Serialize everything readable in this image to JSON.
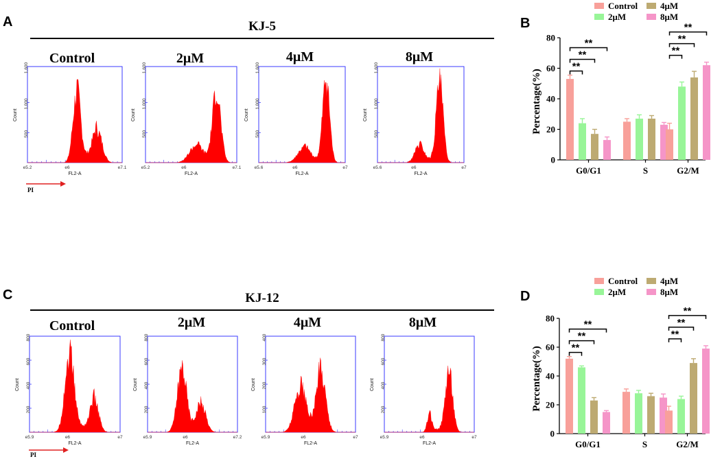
{
  "figure": {
    "panels": [
      "A",
      "B",
      "C",
      "D"
    ],
    "flow_titles": [
      "KJ-5",
      "KJ-12"
    ],
    "conditions": [
      "Control",
      "2μM",
      "4μM",
      "8μM"
    ],
    "flow_xlabel": "FL2-A",
    "flow_ylabel": "Count",
    "pi_label": "PI",
    "colors": {
      "histogram": "#ff0000",
      "frame": "#3a3aff",
      "Control": "#f8a09a",
      "2μM": "#98f598",
      "4μM": "#bdaa72",
      "8μM": "#f595c8",
      "arrow": "#e02020"
    }
  },
  "chart_data": [
    {
      "type": "histogram",
      "panel": "A",
      "title": "KJ-5",
      "xlabel": "FL2-A",
      "ylabel": "Count",
      "plots": [
        {
          "condition": "Control",
          "yticks": [
            "500",
            "1,000",
            "1,600"
          ],
          "ymax": 1600,
          "xticks": [
            "e5.2",
            "e6",
            "e7.1"
          ],
          "peaks": [
            {
              "pos": 0.52,
              "height": 1150,
              "width": 0.04
            },
            {
              "pos": 0.74,
              "height": 520,
              "width": 0.05
            }
          ]
        },
        {
          "condition": "2μM",
          "yticks": [
            "500",
            "1,000",
            "1,600"
          ],
          "ymax": 1600,
          "xticks": [
            "e5.2",
            "e6",
            "e7.1"
          ],
          "peaks": [
            {
              "pos": 0.55,
              "height": 280,
              "width": 0.07
            },
            {
              "pos": 0.78,
              "height": 1170,
              "width": 0.045
            }
          ]
        },
        {
          "condition": "4μM",
          "yticks": [
            "500",
            "1,000",
            "1,600"
          ],
          "ymax": 1600,
          "xticks": [
            "e5.6",
            "e6",
            "e7"
          ],
          "peaks": [
            {
              "pos": 0.52,
              "height": 240,
              "width": 0.07
            },
            {
              "pos": 0.78,
              "height": 1380,
              "width": 0.04
            }
          ]
        },
        {
          "condition": "8μM",
          "yticks": [
            "500",
            "1,000",
            "1,600"
          ],
          "ymax": 1600,
          "xticks": [
            "e5.6",
            "e6",
            "e7"
          ],
          "peaks": [
            {
              "pos": 0.48,
              "height": 280,
              "width": 0.05
            },
            {
              "pos": 0.72,
              "height": 1330,
              "width": 0.04
            }
          ]
        }
      ]
    },
    {
      "type": "bar",
      "panel": "B",
      "ylabel": "Percentage(%)",
      "ylim": [
        0,
        80
      ],
      "yticks": [
        0,
        20,
        40,
        60,
        80
      ],
      "categories": [
        "G0/G1",
        "S",
        "G2/M"
      ],
      "series": [
        {
          "name": "Control",
          "values": [
            53,
            25,
            20
          ],
          "errors": [
            2.5,
            2,
            4
          ]
        },
        {
          "name": "2μM",
          "values": [
            24,
            27,
            48
          ],
          "errors": [
            3,
            2.5,
            3
          ]
        },
        {
          "name": "4μM",
          "values": [
            17,
            27,
            54
          ],
          "errors": [
            3,
            2,
            4
          ]
        },
        {
          "name": "8μM",
          "values": [
            13,
            23,
            62
          ],
          "errors": [
            2,
            1.5,
            2
          ]
        }
      ],
      "significance": [
        {
          "group": "G0/G1",
          "from": "Control",
          "to": "2μM",
          "label": "**"
        },
        {
          "group": "G0/G1",
          "from": "Control",
          "to": "4μM",
          "label": "**"
        },
        {
          "group": "G0/G1",
          "from": "Control",
          "to": "8μM",
          "label": "**"
        },
        {
          "group": "G2/M",
          "from": "Control",
          "to": "2μM",
          "label": "**"
        },
        {
          "group": "G2/M",
          "from": "Control",
          "to": "4μM",
          "label": "**"
        },
        {
          "group": "G2/M",
          "from": "Control",
          "to": "8μM",
          "label": "**"
        }
      ],
      "legend": "top"
    },
    {
      "type": "histogram",
      "panel": "C",
      "title": "KJ-12",
      "xlabel": "FL2-A",
      "ylabel": "Count",
      "plots": [
        {
          "condition": "Control",
          "yticks": [
            "200",
            "400",
            "600",
            "800"
          ],
          "ymax": 800,
          "xticks": [
            "e5.9",
            "e6",
            "e7"
          ],
          "peaks": [
            {
              "pos": 0.44,
              "height": 640,
              "width": 0.05
            },
            {
              "pos": 0.72,
              "height": 260,
              "width": 0.045
            }
          ]
        },
        {
          "condition": "2μM",
          "yticks": [
            "200",
            "400",
            "600",
            "800"
          ],
          "ymax": 800,
          "xticks": [
            "e5.9",
            "e6",
            "e7.2"
          ],
          "peaks": [
            {
              "pos": 0.38,
              "height": 520,
              "width": 0.05
            },
            {
              "pos": 0.6,
              "height": 230,
              "width": 0.05
            }
          ]
        },
        {
          "condition": "4μM",
          "yticks": [
            "100",
            "200",
            "300",
            "400"
          ],
          "ymax": 400,
          "xticks": [
            "e5.9",
            "e6",
            "e7"
          ],
          "peaks": [
            {
              "pos": 0.38,
              "height": 180,
              "width": 0.06
            },
            {
              "pos": 0.62,
              "height": 250,
              "width": 0.05
            }
          ]
        },
        {
          "condition": "8μM",
          "yticks": [
            "200",
            "400",
            "600",
            "800"
          ],
          "ymax": 800,
          "xticks": [
            "e5.9",
            "e6",
            "e7"
          ],
          "peaks": [
            {
              "pos": 0.5,
              "height": 140,
              "width": 0.025
            },
            {
              "pos": 0.72,
              "height": 500,
              "width": 0.04
            }
          ]
        }
      ]
    },
    {
      "type": "bar",
      "panel": "D",
      "ylabel": "Percentage(%)",
      "ylim": [
        0,
        80
      ],
      "yticks": [
        0,
        20,
        40,
        60,
        80
      ],
      "categories": [
        "G0/G1",
        "S",
        "G2/M"
      ],
      "series": [
        {
          "name": "Control",
          "values": [
            52,
            29,
            16
          ],
          "errors": [
            1.5,
            2,
            3
          ]
        },
        {
          "name": "2μM",
          "values": [
            46,
            28,
            24
          ],
          "errors": [
            1,
            2,
            2
          ]
        },
        {
          "name": "4μM",
          "values": [
            23,
            26,
            49
          ],
          "errors": [
            2,
            2,
            3
          ]
        },
        {
          "name": "8μM",
          "values": [
            15,
            25,
            59
          ],
          "errors": [
            1,
            2.5,
            2
          ]
        }
      ],
      "significance": [
        {
          "group": "G0/G1",
          "from": "Control",
          "to": "2μM",
          "label": "**"
        },
        {
          "group": "G0/G1",
          "from": "Control",
          "to": "4μM",
          "label": "**"
        },
        {
          "group": "G0/G1",
          "from": "Control",
          "to": "8μM",
          "label": "**"
        },
        {
          "group": "G2/M",
          "from": "Control",
          "to": "2μM",
          "label": "**"
        },
        {
          "group": "G2/M",
          "from": "Control",
          "to": "4μM",
          "label": "**"
        },
        {
          "group": "G2/M",
          "from": "Control",
          "to": "8μM",
          "label": "**"
        }
      ],
      "legend": "top"
    }
  ]
}
